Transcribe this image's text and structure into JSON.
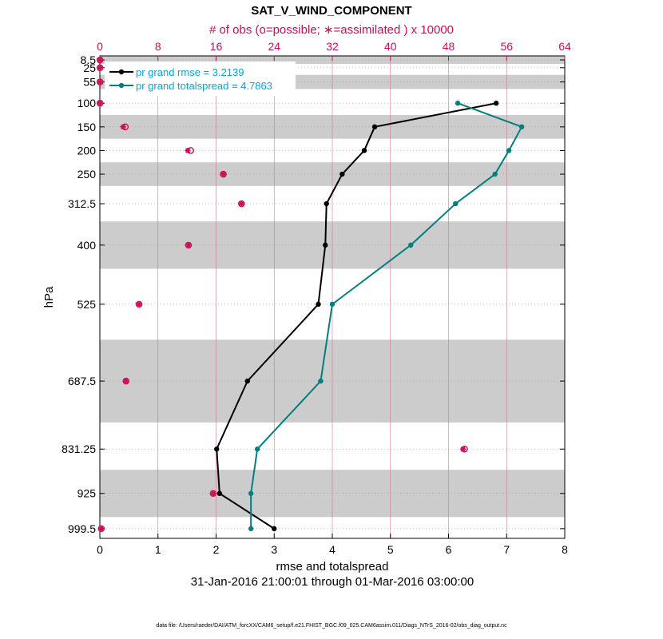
{
  "chart_data": {
    "type": "line",
    "title": "SAT_V_WIND_COMPONENT",
    "top_axis_label": "# of obs (o=possible; ∗=assimilated ) x 10000",
    "xlabel": "rmse and totalspread",
    "ylabel": "hPa",
    "subtitle": "31-Jan-2016 21:00:01 through 01-Mar-2016 03:00:00",
    "footer": "data file: /Users/raeder/DAI/ATM_forcXX/CAM6_setup/f.e21.FHIST_BGC.f09_025.CAM6assim.011/Diags_NTrS_2016-02/obs_diag_output.nc",
    "xlim": [
      0,
      8
    ],
    "x_ticks": [
      0,
      1,
      2,
      3,
      4,
      5,
      6,
      7,
      8
    ],
    "x_tick_labels": [
      "0",
      "1",
      "2",
      "3",
      "4",
      "5",
      "6",
      "7",
      "8"
    ],
    "top_xlim": [
      0,
      64
    ],
    "top_ticks": [
      0,
      8,
      16,
      24,
      32,
      40,
      48,
      56,
      64
    ],
    "top_tick_labels": [
      "0",
      "8",
      "16",
      "24",
      "32",
      "40",
      "48",
      "56",
      "64"
    ],
    "y_levels": [
      8.5,
      25,
      55,
      100,
      150,
      200,
      250,
      312.5,
      400,
      525,
      687.5,
      831.25,
      925,
      999.5
    ],
    "y_tick_labels": [
      "8.5",
      "25",
      "55",
      "100",
      "150",
      "200",
      "250",
      "312.5",
      "400",
      "525",
      "687.5",
      "831.25",
      "925",
      "999.5"
    ],
    "ylim_top": 0,
    "ylim_bottom": 1020,
    "shaded_bands": [
      [
        0,
        17
      ],
      [
        40,
        70
      ],
      [
        125,
        175
      ],
      [
        225,
        275
      ],
      [
        350,
        450
      ],
      [
        600,
        775
      ],
      [
        875,
        975
      ]
    ],
    "legend_position": "top-left",
    "series": [
      {
        "name": "pr grand rmse = 3.2139",
        "color": "#000000",
        "levels": [
          100,
          150,
          200,
          250,
          312.5,
          400,
          525,
          687.5,
          831.25,
          925,
          999.5
        ],
        "values": [
          6.82,
          4.73,
          4.55,
          4.17,
          3.9,
          3.88,
          3.76,
          2.54,
          2.01,
          2.06,
          3.0
        ]
      },
      {
        "name": "pr grand totalspread = 4.7863",
        "color": "#007f7f",
        "levels": [
          100,
          150,
          200,
          250,
          312.5,
          400,
          525,
          687.5,
          831.25,
          925,
          999.5
        ],
        "values": [
          6.16,
          7.26,
          7.04,
          6.8,
          6.12,
          5.35,
          4.0,
          3.8,
          2.71,
          2.6,
          2.6
        ]
      }
    ],
    "obs_possible": {
      "color": "#cc0e56",
      "levels": [
        8.5,
        25,
        55,
        100,
        150,
        200,
        250,
        312.5,
        400,
        525,
        687.5,
        831.25,
        925,
        999.5
      ],
      "values": [
        0.02,
        0.02,
        0.02,
        0.02,
        3.5,
        12.5,
        17.0,
        19.5,
        12.2,
        5.4,
        3.6,
        50.2,
        15.6,
        0.2
      ]
    },
    "obs_assimilated": {
      "color": "#cc0e56",
      "levels": [
        8.5,
        25,
        55,
        100,
        150,
        200,
        250,
        312.5,
        400,
        525,
        687.5,
        831.25,
        925,
        999.5
      ],
      "values": [
        0.02,
        0.02,
        0.02,
        0.02,
        3.2,
        12.1,
        17.0,
        19.5,
        12.2,
        5.4,
        3.6,
        50.0,
        15.6,
        0.2
      ]
    },
    "colors": {
      "top_axis": "#cc0e56",
      "legend_text": "#00a8e0",
      "band": "#cccccc",
      "grid": "#c47a9a"
    }
  }
}
